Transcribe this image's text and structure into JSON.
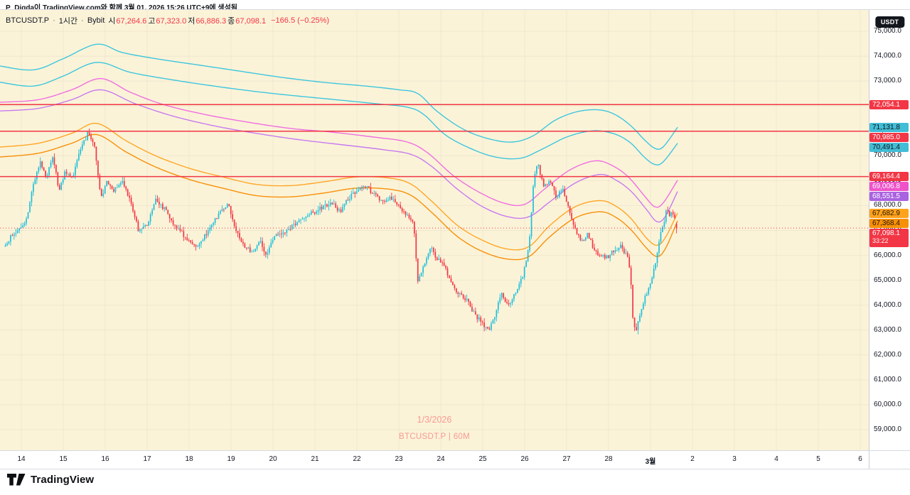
{
  "attribution": "P_Digda이 TradingView.com와 함께 3월 01, 2026 15:26 UTC+9에 생성됨",
  "legend": {
    "symbol": "BTCUSDT.P",
    "separator": "·",
    "interval": "1시간",
    "exchange": "Bybit",
    "ohlc": [
      {
        "label": "시",
        "value": "67,264.6"
      },
      {
        "label": "고",
        "value": "67,323.0"
      },
      {
        "label": "저",
        "value": "66,886.3"
      },
      {
        "label": "종",
        "value": "67,098.1"
      }
    ],
    "change": "−166.5 (−0.25%)"
  },
  "watermark": {
    "line1": "1/3/2026",
    "line2": "BTCUSDT.P | 60M"
  },
  "logo": {
    "text": "TradingView"
  },
  "axis": {
    "currency": "USDT",
    "price_ticks": [
      "75,000.0",
      "74,000.0",
      "73,000.0",
      "72,000.0",
      "71,000.0",
      "70,000.0",
      "69,000.0",
      "68,000.0",
      "67,000.0",
      "66,000.0",
      "65,000.0",
      "64,000.0",
      "63,000.0",
      "62,000.0",
      "61,000.0",
      "60,000.0",
      "59,000.0"
    ],
    "time_ticks": [
      "14",
      "15",
      "16",
      "17",
      "18",
      "19",
      "20",
      "21",
      "22",
      "23",
      "24",
      "25",
      "26",
      "27",
      "28",
      "3월",
      "2",
      "3",
      "4",
      "5",
      "6"
    ]
  },
  "price_labels": [
    {
      "name": "price-label-hline-1",
      "text": "72,054.1",
      "price": 72054.1,
      "bg": "#F23645",
      "fg": "#FFFFFF"
    },
    {
      "name": "price-label-band-cyan-1",
      "text": "71,131.8",
      "price": 71131.8,
      "bg": "#42BDD6",
      "fg": "#10141C"
    },
    {
      "name": "price-label-hline-2",
      "text": "70,985.0",
      "price": 70985.0,
      "bg": "#F23645",
      "fg": "#FFFFFF"
    },
    {
      "name": "price-label-band-cyan-2",
      "text": "70,491.4",
      "price": 70491.4,
      "bg": "#42BDD6",
      "fg": "#10141C"
    },
    {
      "name": "price-label-hline-3",
      "text": "69,164.4",
      "price": 69164.4,
      "bg": "#F23645",
      "fg": "#FFFFFF"
    },
    {
      "name": "price-label-band-pink",
      "text": "69,006.8",
      "price": 69006.8,
      "bg": "#EE53C9",
      "fg": "#FFFFFF"
    },
    {
      "name": "price-label-band-violet",
      "text": "68,551.5",
      "price": 68551.5,
      "bg": "#A962E0",
      "fg": "#FFFFFF"
    },
    {
      "name": "price-label-band-orange-1",
      "text": "67,682.9",
      "price": 67682.9,
      "bg": "#FFA21C",
      "fg": "#231500"
    },
    {
      "name": "price-label-band-orange-2",
      "text": "67,368.4",
      "price": 67368.4,
      "bg": "#F79009",
      "fg": "#231500"
    },
    {
      "name": "price-label-last",
      "text": "67,098.1",
      "sub": "33:22",
      "price": 67098.1,
      "bg": "#F23645",
      "fg": "#FFFFFF"
    }
  ],
  "colors": {
    "chart_bg": "#FBF3D8",
    "candle_up": "#1FBFDB",
    "candle_down": "#F23645",
    "hline": "#F23645",
    "current_line": "#F23645",
    "axis_text": "#131722",
    "border": "#D7DAE0",
    "watermark": "rgba(242,54,69,0.48)"
  },
  "chart_data": {
    "type": "candlestick",
    "title": "BTCUSDT.P · 1시간 · Bybit",
    "symbol": "BTCUSDT.P",
    "interval": "60M",
    "exchange": "Bybit",
    "x_unit": "days since 2026-02-14 00:00 (tick labels 14..28, 3월=Mar 1, then 2..6)",
    "y_axis": {
      "min": 59000,
      "max": 75000,
      "tick_step": 1000
    },
    "grid": true,
    "legend_position": "top-left",
    "current_price": {
      "price": 67098.1,
      "countdown": "33:22"
    },
    "horizontal_lines": [
      {
        "price": 72054.1
      },
      {
        "price": 70985.0
      },
      {
        "price": 69164.4
      }
    ],
    "candles": {
      "start_day": -0.38,
      "end_day": 15.64,
      "interval_days": 0.0416667,
      "last_candle": {
        "open": 67264.6,
        "high": 67323.0,
        "low": 66886.3,
        "close": 67098.1
      },
      "close_waypoints": [
        [
          -0.38,
          66350
        ],
        [
          -0.2,
          66900
        ],
        [
          0,
          67050
        ],
        [
          0.15,
          67650
        ],
        [
          0.3,
          69000
        ],
        [
          0.45,
          69700
        ],
        [
          0.6,
          69150
        ],
        [
          0.75,
          69900
        ],
        [
          0.9,
          68650
        ],
        [
          1.05,
          69350
        ],
        [
          1.2,
          69050
        ],
        [
          1.4,
          70200
        ],
        [
          1.6,
          70950
        ],
        [
          1.75,
          70300
        ],
        [
          1.9,
          68300
        ],
        [
          2.05,
          69000
        ],
        [
          2.2,
          68600
        ],
        [
          2.4,
          68950
        ],
        [
          2.6,
          68200
        ],
        [
          2.8,
          66950
        ],
        [
          3,
          67250
        ],
        [
          3.2,
          68200
        ],
        [
          3.4,
          67900
        ],
        [
          3.6,
          67350
        ],
        [
          3.8,
          66950
        ],
        [
          4,
          66550
        ],
        [
          4.2,
          66300
        ],
        [
          4.4,
          66850
        ],
        [
          4.6,
          67400
        ],
        [
          4.8,
          67850
        ],
        [
          4.95,
          68050
        ],
        [
          5.1,
          67000
        ],
        [
          5.3,
          66400
        ],
        [
          5.5,
          66150
        ],
        [
          5.7,
          66550
        ],
        [
          5.85,
          65950
        ],
        [
          6,
          66700
        ],
        [
          6.2,
          66900
        ],
        [
          6.4,
          67100
        ],
        [
          6.6,
          67350
        ],
        [
          6.8,
          67600
        ],
        [
          7,
          67750
        ],
        [
          7.2,
          67950
        ],
        [
          7.4,
          68100
        ],
        [
          7.6,
          67750
        ],
        [
          7.8,
          68300
        ],
        [
          8,
          68600
        ],
        [
          8.2,
          68800
        ],
        [
          8.4,
          68450
        ],
        [
          8.6,
          68150
        ],
        [
          8.8,
          68300
        ],
        [
          9,
          67950
        ],
        [
          9.2,
          67550
        ],
        [
          9.35,
          67350
        ],
        [
          9.45,
          64950
        ],
        [
          9.6,
          65650
        ],
        [
          9.75,
          66350
        ],
        [
          9.9,
          65850
        ],
        [
          10.05,
          65750
        ],
        [
          10.2,
          65050
        ],
        [
          10.4,
          64450
        ],
        [
          10.6,
          64250
        ],
        [
          10.8,
          63650
        ],
        [
          11,
          63250
        ],
        [
          11.15,
          62950
        ],
        [
          11.3,
          63650
        ],
        [
          11.45,
          64550
        ],
        [
          11.6,
          63950
        ],
        [
          11.75,
          64450
        ],
        [
          11.95,
          65150
        ],
        [
          12.1,
          66350
        ],
        [
          12.22,
          69100
        ],
        [
          12.32,
          69700
        ],
        [
          12.45,
          68700
        ],
        [
          12.6,
          68950
        ],
        [
          12.75,
          68350
        ],
        [
          12.9,
          68650
        ],
        [
          13.05,
          67900
        ],
        [
          13.2,
          67100
        ],
        [
          13.35,
          66550
        ],
        [
          13.5,
          66850
        ],
        [
          13.65,
          66250
        ],
        [
          13.8,
          65950
        ],
        [
          14,
          65950
        ],
        [
          14.15,
          66250
        ],
        [
          14.3,
          66350
        ],
        [
          14.45,
          65950
        ],
        [
          14.52,
          65300
        ],
        [
          14.58,
          63400
        ],
        [
          14.65,
          62950
        ],
        [
          14.72,
          63450
        ],
        [
          14.8,
          63950
        ],
        [
          14.9,
          64450
        ],
        [
          15,
          64950
        ],
        [
          15.08,
          65450
        ],
        [
          15.16,
          66050
        ],
        [
          15.24,
          66850
        ],
        [
          15.32,
          67350
        ],
        [
          15.38,
          67900
        ],
        [
          15.45,
          67500
        ],
        [
          15.52,
          67800
        ],
        [
          15.58,
          67400
        ],
        [
          15.64,
          67098.1
        ]
      ]
    },
    "bands": [
      {
        "name": "upper-band-cyan-1",
        "color": "#3EC6DE",
        "last_value": 71131.8,
        "waypoints": [
          [
            -0.5,
            73600
          ],
          [
            0.3,
            73450
          ],
          [
            1,
            73900
          ],
          [
            1.8,
            74480
          ],
          [
            2.4,
            74150
          ],
          [
            3.2,
            73900
          ],
          [
            4.2,
            73650
          ],
          [
            5.2,
            73400
          ],
          [
            6.2,
            73150
          ],
          [
            7.2,
            72950
          ],
          [
            8.2,
            72800
          ],
          [
            9,
            72650
          ],
          [
            9.45,
            72500
          ],
          [
            9.9,
            71800
          ],
          [
            10.5,
            71100
          ],
          [
            11.1,
            70700
          ],
          [
            11.7,
            70550
          ],
          [
            12.2,
            70800
          ],
          [
            12.7,
            71400
          ],
          [
            13.2,
            71750
          ],
          [
            13.7,
            71850
          ],
          [
            14.1,
            71700
          ],
          [
            14.5,
            71250
          ],
          [
            14.85,
            70650
          ],
          [
            15.1,
            70300
          ],
          [
            15.3,
            70350
          ],
          [
            15.64,
            71131.8
          ]
        ]
      },
      {
        "name": "upper-band-cyan-2",
        "color": "#3EC6DE",
        "last_value": 70491.4,
        "waypoints": [
          [
            -0.5,
            72950
          ],
          [
            0.3,
            72800
          ],
          [
            1,
            73200
          ],
          [
            1.8,
            73750
          ],
          [
            2.6,
            73350
          ],
          [
            3.6,
            73050
          ],
          [
            4.8,
            72750
          ],
          [
            6,
            72500
          ],
          [
            7.2,
            72300
          ],
          [
            8.4,
            72100
          ],
          [
            9.2,
            71950
          ],
          [
            9.6,
            71650
          ],
          [
            10.1,
            70850
          ],
          [
            10.7,
            70300
          ],
          [
            11.3,
            69950
          ],
          [
            11.9,
            69900
          ],
          [
            12.4,
            70250
          ],
          [
            13,
            70750
          ],
          [
            13.6,
            71000
          ],
          [
            14.1,
            70900
          ],
          [
            14.5,
            70550
          ],
          [
            14.85,
            69950
          ],
          [
            15.1,
            69650
          ],
          [
            15.3,
            69750
          ],
          [
            15.64,
            70491.4
          ]
        ]
      },
      {
        "name": "upper-band-pink",
        "color": "#F06FE0",
        "last_value": 69006.8,
        "waypoints": [
          [
            -0.5,
            72150
          ],
          [
            0.4,
            72250
          ],
          [
            1.2,
            72650
          ],
          [
            1.9,
            73100
          ],
          [
            2.6,
            72550
          ],
          [
            3.4,
            72050
          ],
          [
            4.4,
            71650
          ],
          [
            5.4,
            71350
          ],
          [
            6.4,
            71100
          ],
          [
            7.4,
            70950
          ],
          [
            8.4,
            70750
          ],
          [
            9.2,
            70550
          ],
          [
            9.7,
            70100
          ],
          [
            10.3,
            69200
          ],
          [
            10.9,
            68550
          ],
          [
            11.5,
            68100
          ],
          [
            12,
            68050
          ],
          [
            12.5,
            68700
          ],
          [
            13.1,
            69450
          ],
          [
            13.7,
            69800
          ],
          [
            14.15,
            69550
          ],
          [
            14.5,
            69100
          ],
          [
            14.85,
            68400
          ],
          [
            15.1,
            67950
          ],
          [
            15.3,
            68100
          ],
          [
            15.64,
            69006.8
          ]
        ]
      },
      {
        "name": "upper-band-violet",
        "color": "#C77BF0",
        "last_value": 68551.5,
        "waypoints": [
          [
            -0.5,
            71800
          ],
          [
            0.4,
            71900
          ],
          [
            1.2,
            72250
          ],
          [
            1.9,
            72650
          ],
          [
            2.7,
            72100
          ],
          [
            3.6,
            71600
          ],
          [
            4.6,
            71200
          ],
          [
            5.6,
            70900
          ],
          [
            6.6,
            70650
          ],
          [
            7.6,
            70450
          ],
          [
            8.6,
            70250
          ],
          [
            9.3,
            70050
          ],
          [
            9.8,
            69550
          ],
          [
            10.4,
            68650
          ],
          [
            11,
            67950
          ],
          [
            11.6,
            67550
          ],
          [
            12.1,
            67550
          ],
          [
            12.6,
            68150
          ],
          [
            13.2,
            68900
          ],
          [
            13.8,
            69250
          ],
          [
            14.2,
            69000
          ],
          [
            14.55,
            68550
          ],
          [
            14.9,
            67850
          ],
          [
            15.15,
            67350
          ],
          [
            15.35,
            67550
          ],
          [
            15.64,
            68551.5
          ]
        ]
      },
      {
        "name": "upper-band-orange-1",
        "color": "#FFA626",
        "last_value": 67682.9,
        "waypoints": [
          [
            -0.5,
            70350
          ],
          [
            0.4,
            70500
          ],
          [
            1.2,
            70900
          ],
          [
            1.8,
            71300
          ],
          [
            2.5,
            70600
          ],
          [
            3.2,
            70000
          ],
          [
            4,
            69500
          ],
          [
            4.8,
            69150
          ],
          [
            5.6,
            68850
          ],
          [
            6.4,
            68800
          ],
          [
            7.2,
            68950
          ],
          [
            8,
            69150
          ],
          [
            8.8,
            69100
          ],
          [
            9.3,
            68850
          ],
          [
            9.8,
            68150
          ],
          [
            10.4,
            67200
          ],
          [
            11,
            66600
          ],
          [
            11.6,
            66250
          ],
          [
            12.1,
            66350
          ],
          [
            12.6,
            67200
          ],
          [
            13.2,
            67950
          ],
          [
            13.8,
            68200
          ],
          [
            14.2,
            67950
          ],
          [
            14.55,
            67450
          ],
          [
            14.9,
            66700
          ],
          [
            15.15,
            66400
          ],
          [
            15.35,
            66700
          ],
          [
            15.64,
            67682.9
          ]
        ]
      },
      {
        "name": "upper-band-orange-2",
        "color": "#F79009",
        "last_value": 67368.4,
        "waypoints": [
          [
            -0.5,
            69950
          ],
          [
            0.4,
            70100
          ],
          [
            1.2,
            70500
          ],
          [
            1.8,
            70850
          ],
          [
            2.5,
            70150
          ],
          [
            3.2,
            69550
          ],
          [
            4,
            69050
          ],
          [
            4.8,
            68700
          ],
          [
            5.6,
            68400
          ],
          [
            6.4,
            68350
          ],
          [
            7.2,
            68500
          ],
          [
            8,
            68700
          ],
          [
            8.8,
            68650
          ],
          [
            9.3,
            68400
          ],
          [
            9.8,
            67700
          ],
          [
            10.4,
            66750
          ],
          [
            11,
            66150
          ],
          [
            11.6,
            65850
          ],
          [
            12.1,
            65950
          ],
          [
            12.6,
            66750
          ],
          [
            13.2,
            67500
          ],
          [
            13.8,
            67750
          ],
          [
            14.2,
            67500
          ],
          [
            14.55,
            67000
          ],
          [
            14.9,
            66300
          ],
          [
            15.15,
            65950
          ],
          [
            15.35,
            66250
          ],
          [
            15.64,
            67368.4
          ]
        ]
      }
    ]
  }
}
